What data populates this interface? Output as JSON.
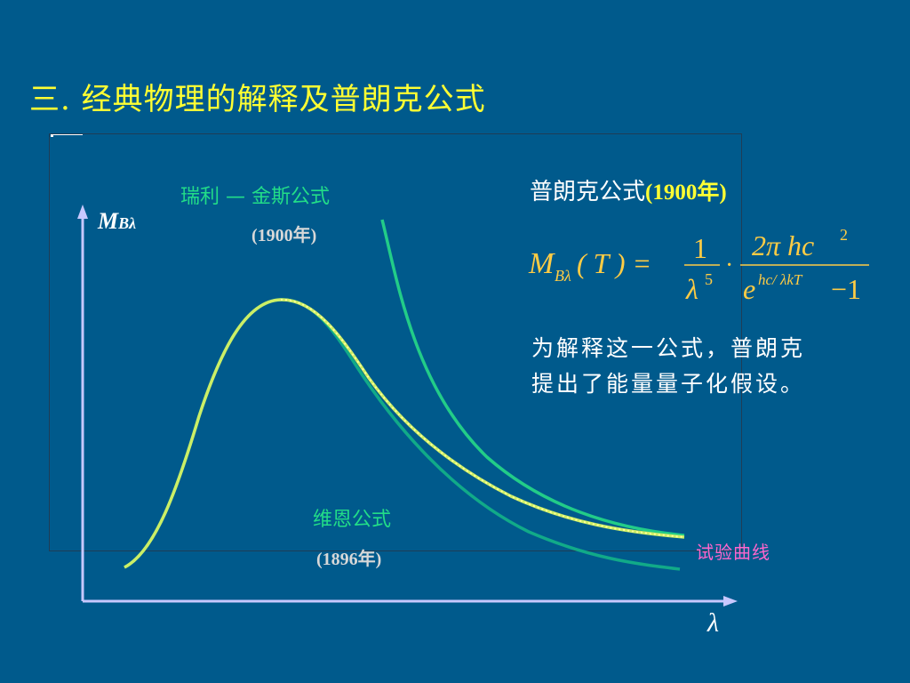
{
  "title": "三. 经典物理的解释及普朗克公式",
  "axes": {
    "y_label_main": "M",
    "y_label_sub": "Bλ",
    "x_label": "λ"
  },
  "curves": {
    "rayleigh_jeans": {
      "label": "瑞利 — 金斯公式",
      "year": "(1900年)",
      "color": "#22cc88"
    },
    "wien": {
      "label": "维恩公式",
      "year": "(1896年)",
      "color": "#11aa88"
    },
    "experimental": {
      "label": "试验曲线",
      "color": "#ff66cc"
    },
    "planck_curve_color": "#ccee66"
  },
  "planck": {
    "title": "普朗克公式",
    "year": "(1900年)",
    "formula": {
      "lhs_M": "M",
      "lhs_sub": "Bλ",
      "lhs_arg": "( T ) =",
      "f1_num": "1",
      "f1_den_base": "λ",
      "f1_den_exp": "5",
      "dot": "·",
      "f2_num": "2π hc",
      "f2_num_exp": "2",
      "f2_den_e": "e",
      "f2_den_exp": "hc/ λkT",
      "f2_den_tail": "−1"
    },
    "formula_color": "#ffcc44"
  },
  "explanation": {
    "line1": "为解释这一公式，普朗克",
    "line2": "提出了能量量子化假设。"
  }
}
